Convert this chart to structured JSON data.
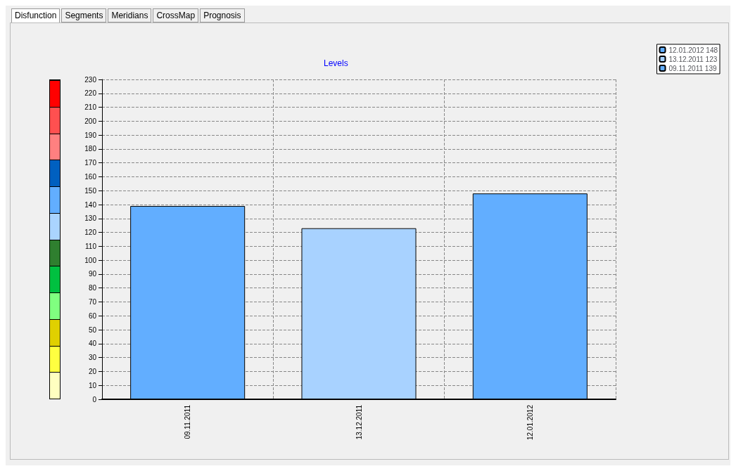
{
  "chart_data": {
    "type": "bar",
    "title": "Levels",
    "annotations": [
      "Disfunction",
      "Segments",
      "Meridians",
      "CrossMap",
      "Prognosis"
    ],
    "categories": [
      "09.11.2011",
      "13.12.2011",
      "12.01.2012"
    ],
    "series": [
      {
        "name": "12.01.2012 148",
        "color": "#62aeff",
        "values": [
          null,
          null,
          148
        ]
      },
      {
        "name": "13.12.2011 123",
        "color": "#a8d2ff",
        "values": [
          null,
          123,
          null
        ]
      },
      {
        "name": "09.11.2011 139",
        "color": "#62aeff",
        "values": [
          139,
          null,
          null
        ]
      }
    ],
    "ylim": [
      0,
      230
    ],
    "yticks": [
      0,
      10,
      20,
      30,
      40,
      50,
      60,
      70,
      80,
      90,
      100,
      110,
      120,
      130,
      140,
      150,
      160,
      170,
      180,
      190,
      200,
      210,
      220,
      230
    ],
    "grid": true,
    "legend": "top right"
  }
}
